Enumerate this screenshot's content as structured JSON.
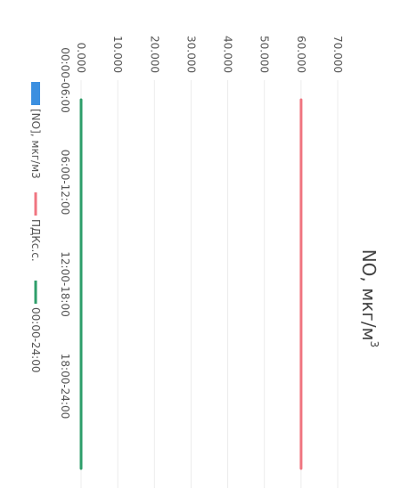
{
  "chart_data": {
    "type": "line",
    "title": "NO, мкг/м",
    "title_superscript": "3",
    "categories": [
      "00:00-06:00",
      "06:00-12:00",
      "12:00-18:00",
      "18:00-24:00"
    ],
    "ylim": [
      0,
      70
    ],
    "yticks": [
      "0.000",
      "10.000",
      "20.000",
      "30.000",
      "40.000",
      "50.000",
      "60.000",
      "70.000"
    ],
    "grid": true,
    "legend_position": "bottom",
    "series": [
      {
        "name": "[NO], мкг/м3",
        "kind": "bar",
        "color": "#3b8fe0",
        "values": [
          0,
          0,
          0,
          0
        ]
      },
      {
        "name": "ПДКс.с.",
        "kind": "line",
        "color": "#f07580",
        "values": [
          60,
          60,
          60,
          60
        ]
      },
      {
        "name": "00:00-24:00",
        "kind": "line",
        "color": "#2e9e6a",
        "values": [
          0,
          0,
          0,
          0
        ]
      }
    ]
  }
}
